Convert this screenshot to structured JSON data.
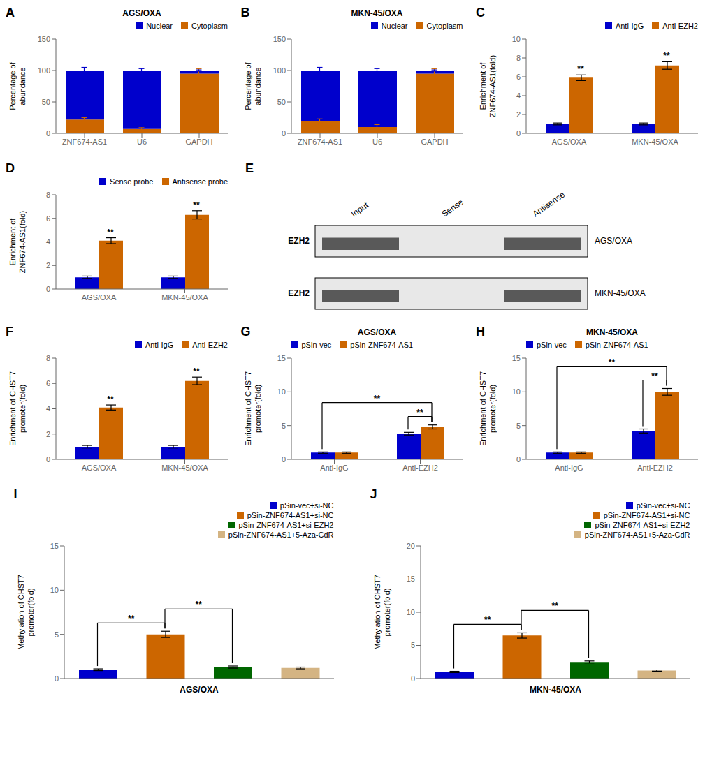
{
  "chart_data": [
    {
      "panel": "A",
      "type": "bar",
      "stacked": true,
      "title": "AGS/OXA",
      "ylabel": "Percentage of\nabundance",
      "categories": [
        "ZNF674-AS1",
        "U6",
        "GAPDH"
      ],
      "series": [
        {
          "name": "Cytoplasm",
          "color": "#cc6600",
          "values": [
            22,
            7,
            95
          ],
          "errors": [
            3,
            2,
            8
          ]
        },
        {
          "name": "Nuclear",
          "color": "#0000cc",
          "values": [
            78,
            93,
            5
          ],
          "errors": [
            5,
            3,
            1
          ]
        }
      ],
      "ylim": [
        0,
        150
      ],
      "yticks": [
        0,
        50,
        100,
        150
      ],
      "legend": "upper right"
    },
    {
      "panel": "B",
      "type": "bar",
      "stacked": true,
      "title": "MKN-45/OXA",
      "ylabel": "Percentage of\nabundance",
      "categories": [
        "ZNF674-AS1",
        "U6",
        "GAPDH"
      ],
      "series": [
        {
          "name": "Cytoplasm",
          "color": "#cc6600",
          "values": [
            20,
            10,
            95
          ],
          "errors": [
            3,
            4,
            8
          ]
        },
        {
          "name": "Nuclear",
          "color": "#0000cc",
          "values": [
            80,
            90,
            5
          ],
          "errors": [
            5,
            3,
            1
          ]
        }
      ],
      "ylim": [
        0,
        150
      ],
      "yticks": [
        0,
        50,
        100,
        150
      ],
      "legend": "upper right"
    },
    {
      "panel": "C",
      "type": "bar",
      "ylabel": "Enrichment of\nZNF674-AS1(fold)",
      "categories": [
        "AGS/OXA",
        "MKN-45/OXA"
      ],
      "series": [
        {
          "name": "Anti-IgG",
          "color": "#0000cc",
          "values": [
            1.0,
            1.0
          ],
          "errors": [
            0.1,
            0.1
          ]
        },
        {
          "name": "Anti-EZH2",
          "color": "#cc6600",
          "values": [
            5.9,
            7.2
          ],
          "errors": [
            0.3,
            0.4
          ]
        }
      ],
      "ylim": [
        0,
        10
      ],
      "yticks": [
        0,
        2,
        4,
        6,
        8,
        10
      ],
      "legend": "upper right",
      "annotations": [
        {
          "text": "**",
          "category": "AGS/OXA",
          "series": "Anti-EZH2"
        },
        {
          "text": "**",
          "category": "MKN-45/OXA",
          "series": "Anti-EZH2"
        }
      ]
    },
    {
      "panel": "D",
      "type": "bar",
      "ylabel": "Enrichment of\nZNF674-AS1(fold)",
      "categories": [
        "AGS/OXA",
        "MKN-45/OXA"
      ],
      "series": [
        {
          "name": "Sense probe",
          "color": "#0000cc",
          "values": [
            1.0,
            1.0
          ],
          "errors": [
            0.1,
            0.1
          ]
        },
        {
          "name": "Antisense probe",
          "color": "#cc6600",
          "values": [
            4.1,
            6.3
          ],
          "errors": [
            0.25,
            0.35
          ]
        }
      ],
      "ylim": [
        0,
        8
      ],
      "yticks": [
        0,
        2,
        4,
        6,
        8
      ],
      "legend": "upper right",
      "annotations": [
        {
          "text": "**",
          "category": "AGS/OXA",
          "series": "Antisense probe"
        },
        {
          "text": "**",
          "category": "MKN-45/OXA",
          "series": "Antisense probe"
        }
      ]
    },
    {
      "panel": "E",
      "type": "blot",
      "ylabel": "EZH2",
      "categories": [
        "Input",
        "Sense",
        "Antisense"
      ],
      "series": [
        {
          "name": "AGS/OXA"
        },
        {
          "name": "MKN-45/OXA"
        }
      ]
    },
    {
      "panel": "F",
      "type": "bar",
      "ylabel": "Enrichment of CHST7\npromoter(fold)",
      "categories": [
        "AGS/OXA",
        "MKN-45/OXA"
      ],
      "series": [
        {
          "name": "Anti-IgG",
          "color": "#0000cc",
          "values": [
            1.0,
            1.0
          ],
          "errors": [
            0.1,
            0.1
          ]
        },
        {
          "name": "Anti-EZH2",
          "color": "#cc6600",
          "values": [
            4.1,
            6.2
          ],
          "errors": [
            0.2,
            0.3
          ]
        }
      ],
      "ylim": [
        0,
        8
      ],
      "yticks": [
        0,
        2,
        4,
        6,
        8
      ],
      "legend": "upper right",
      "annotations": [
        {
          "text": "**",
          "category": "AGS/OXA",
          "series": "Anti-EZH2"
        },
        {
          "text": "**",
          "category": "MKN-45/OXA",
          "series": "Anti-EZH2"
        }
      ]
    },
    {
      "panel": "G",
      "type": "bar",
      "title": "AGS/OXA",
      "ylabel": "Enrichment of CHST7\npromoter(fold)",
      "categories": [
        "Anti-IgG",
        "Anti-EZH2"
      ],
      "series": [
        {
          "name": "pSin-vec",
          "color": "#0000cc",
          "values": [
            1.0,
            3.8
          ],
          "errors": [
            0.1,
            0.2
          ]
        },
        {
          "name": "pSin-ZNF674-AS1",
          "color": "#cc6600",
          "values": [
            1.0,
            4.8
          ],
          "errors": [
            0.1,
            0.3
          ]
        }
      ],
      "ylim": [
        0,
        15
      ],
      "yticks": [
        0,
        5,
        10,
        15
      ],
      "legend": "upper left",
      "annotations": [
        {
          "text": "**",
          "from": {
            "category": "Anti-IgG",
            "series": "pSin-vec"
          },
          "to": {
            "category": "Anti-EZH2",
            "series": "pSin-ZNF674-AS1"
          }
        },
        {
          "text": "**",
          "from": {
            "category": "Anti-EZH2",
            "series": "pSin-vec"
          },
          "to": {
            "category": "Anti-EZH2",
            "series": "pSin-ZNF674-AS1"
          }
        }
      ]
    },
    {
      "panel": "H",
      "type": "bar",
      "title": "MKN-45/OXA",
      "ylabel": "Enrichment of CHST7\npromoter(fold)",
      "categories": [
        "Anti-IgG",
        "Anti-EZH2"
      ],
      "series": [
        {
          "name": "pSin-vec",
          "color": "#0000cc",
          "values": [
            1.0,
            4.2
          ],
          "errors": [
            0.1,
            0.3
          ]
        },
        {
          "name": "pSin-ZNF674-AS1",
          "color": "#cc6600",
          "values": [
            1.0,
            10.0
          ],
          "errors": [
            0.1,
            0.5
          ]
        }
      ],
      "ylim": [
        0,
        15
      ],
      "yticks": [
        0,
        5,
        10,
        15
      ],
      "legend": "upper left",
      "annotations": [
        {
          "text": "**",
          "from": {
            "category": "Anti-IgG",
            "series": "pSin-vec"
          },
          "to": {
            "category": "Anti-EZH2",
            "series": "pSin-ZNF674-AS1"
          }
        },
        {
          "text": "**",
          "from": {
            "category": "Anti-EZH2",
            "series": "pSin-vec"
          },
          "to": {
            "category": "Anti-EZH2",
            "series": "pSin-ZNF674-AS1"
          }
        }
      ]
    },
    {
      "panel": "I",
      "type": "bar",
      "xlabel": "AGS/OXA",
      "ylabel": "Methylation of CHST7\npromoter(fold)",
      "categories": [
        "pSin-vec+si-NC",
        "pSin-ZNF674-AS1+si-NC",
        "pSin-ZNF674-AS1+si-EZH2",
        "pSin-ZNF674-AS1+5-Aza-CdR"
      ],
      "values": [
        1.0,
        5.0,
        1.3,
        1.2
      ],
      "errors": [
        0.1,
        0.35,
        0.12,
        0.1
      ],
      "colors": [
        "#0000cc",
        "#cc6600",
        "#006600",
        "#d4b483"
      ],
      "ylim": [
        0,
        15
      ],
      "yticks": [
        0,
        5,
        10,
        15
      ],
      "legend": "upper right",
      "tick_labels": "y",
      "annotations": [
        {
          "text": "**",
          "from": {
            "category": "pSin-vec+si-NC"
          },
          "to": {
            "category": "pSin-ZNF674-AS1+si-NC"
          }
        },
        {
          "text": "**",
          "from": {
            "category": "pSin-ZNF674-AS1+si-NC"
          },
          "to": {
            "category": "pSin-ZNF674-AS1+si-EZH2"
          }
        }
      ]
    },
    {
      "panel": "J",
      "type": "bar",
      "xlabel": "MKN-45/OXA",
      "ylabel": "Methylation of CHST7\npromoter(fold)",
      "categories": [
        "pSin-vec+si-NC",
        "pSin-ZNF674-AS1+si-NC",
        "pSin-ZNF674-AS1+si-EZH2",
        "pSin-ZNF674-AS1+5-Aza-CdR"
      ],
      "values": [
        1.0,
        6.5,
        2.5,
        1.2
      ],
      "errors": [
        0.1,
        0.4,
        0.15,
        0.1
      ],
      "colors": [
        "#0000cc",
        "#cc6600",
        "#006600",
        "#d4b483"
      ],
      "ylim": [
        0,
        20
      ],
      "yticks": [
        0,
        5,
        10,
        15,
        20
      ],
      "legend": "upper right",
      "tick_labels": "y",
      "annotations": [
        {
          "text": "**",
          "from": {
            "category": "pSin-vec+si-NC"
          },
          "to": {
            "category": "pSin-ZNF674-AS1+si-NC"
          }
        },
        {
          "text": "**",
          "from": {
            "category": "pSin-ZNF674-AS1+si-NC"
          },
          "to": {
            "category": "pSin-ZNF674-AS1+si-EZH2"
          }
        }
      ]
    }
  ]
}
